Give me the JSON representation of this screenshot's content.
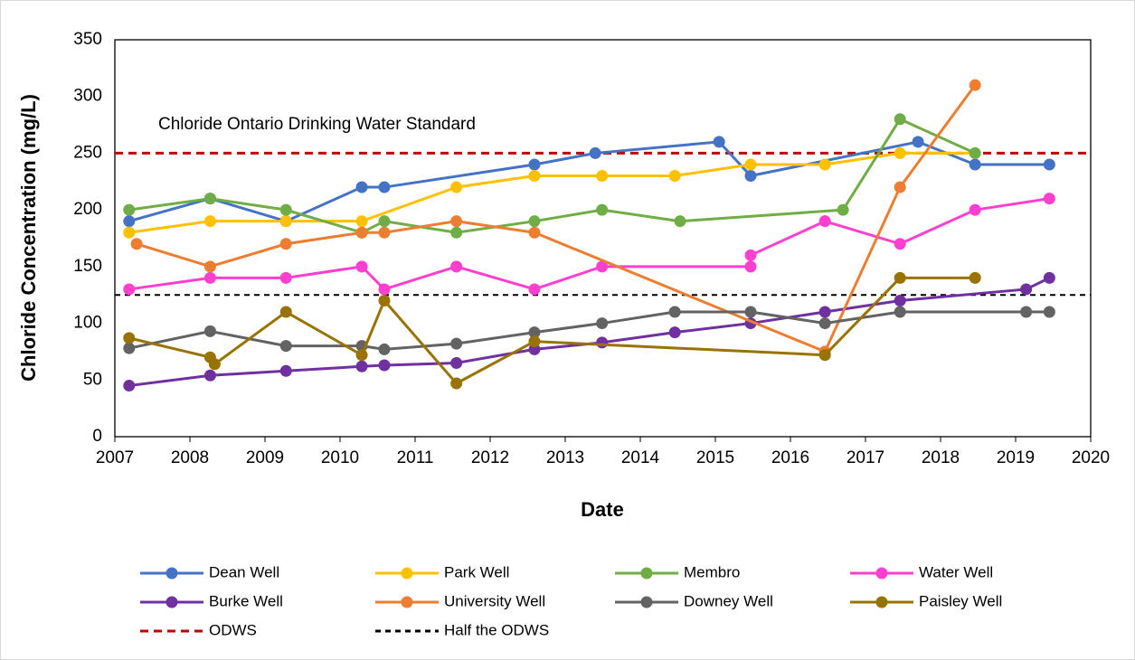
{
  "chart_data": {
    "type": "line",
    "x_label": "Date",
    "y_label": "Chloride Concentration (mg/L)",
    "annotation": "Chloride Ontario Drinking Water Standard",
    "xlim": [
      2007,
      2020
    ],
    "xticks": [
      2007,
      2008,
      2009,
      2010,
      2011,
      2012,
      2013,
      2014,
      2015,
      2016,
      2017,
      2018,
      2019,
      2020
    ],
    "ylim": [
      0,
      350
    ],
    "yticks": [
      0,
      50,
      100,
      150,
      200,
      250,
      300,
      350
    ],
    "legend": "bottom",
    "series": [
      {
        "name": "Dean Well",
        "color": "#4472c4",
        "x": [
          2007.19,
          2008.27,
          2009.28,
          2010.29,
          2010.59,
          2012.59,
          2013.4,
          2015.05,
          2015.47,
          2017.7,
          2018.46,
          2019.45
        ],
        "values": [
          190,
          210,
          190,
          220,
          220,
          240,
          250,
          260,
          230,
          260,
          240,
          240
        ]
      },
      {
        "name": "Park Well",
        "color": "#ffc000",
        "x": [
          2007.19,
          2008.27,
          2009.28,
          2010.29,
          2011.55,
          2012.59,
          2013.49,
          2014.46,
          2015.47,
          2016.46,
          2017.46,
          2018.46
        ],
        "values": [
          180,
          190,
          190,
          190,
          220,
          230,
          230,
          230,
          240,
          240,
          250,
          250
        ]
      },
      {
        "name": "Membro",
        "color": "#70ad47",
        "x": [
          2007.19,
          2008.27,
          2009.28,
          2010.29,
          2010.59,
          2011.55,
          2012.59,
          2013.49,
          2014.53,
          2016.7,
          2017.46,
          2018.46
        ],
        "values": [
          200,
          210,
          200,
          180,
          190,
          180,
          190,
          200,
          190,
          200,
          280,
          250
        ]
      },
      {
        "name": "Water Well",
        "color": "#ff3fcf",
        "x": [
          2007.19,
          2008.27,
          2009.28,
          2010.29,
          2010.59,
          2011.55,
          2012.59,
          2013.49,
          2015.47,
          2015.47,
          2016.46,
          2017.46,
          2018.46,
          2019.45
        ],
        "values": [
          130,
          140,
          140,
          150,
          130,
          150,
          130,
          150,
          150,
          160,
          190,
          170,
          200,
          210
        ]
      },
      {
        "name": "Burke Well",
        "color": "#7030a0",
        "x": [
          2007.19,
          2008.27,
          2009.28,
          2010.29,
          2010.59,
          2011.55,
          2012.59,
          2013.49,
          2014.46,
          2015.47,
          2016.46,
          2017.46,
          2019.14,
          2019.45
        ],
        "values": [
          45,
          54,
          58,
          62,
          63,
          65,
          77,
          83,
          92,
          100,
          110,
          120,
          130,
          140
        ]
      },
      {
        "name": "University Well",
        "color": "#ed7d31",
        "x": [
          2007.29,
          2008.27,
          2009.28,
          2010.29,
          2010.59,
          2011.55,
          2012.59,
          2016.46,
          2017.46,
          2018.46
        ],
        "values": [
          170,
          150,
          170,
          180,
          180,
          190,
          180,
          75,
          220,
          310
        ]
      },
      {
        "name": "Downey Well",
        "color": "#636363",
        "x": [
          2007.19,
          2008.27,
          2009.28,
          2010.29,
          2010.59,
          2011.55,
          2012.59,
          2013.49,
          2014.46,
          2015.47,
          2016.46,
          2017.46,
          2019.14,
          2019.45
        ],
        "values": [
          78,
          93,
          80,
          80,
          77,
          82,
          92,
          100,
          110,
          110,
          100,
          110,
          110,
          110
        ]
      },
      {
        "name": "Paisley Well",
        "color": "#997300",
        "x": [
          2007.19,
          2008.27,
          2008.33,
          2009.28,
          2010.29,
          2010.59,
          2011.55,
          2012.59,
          2016.46,
          2017.46,
          2018.46
        ],
        "values": [
          87,
          70,
          64,
          110,
          72,
          120,
          47,
          84,
          72,
          140,
          140
        ]
      }
    ],
    "reference_lines": [
      {
        "name": "ODWS",
        "color": "#c00000",
        "value": 250
      },
      {
        "name": "Half the ODWS",
        "color": "#000000",
        "value": 125
      }
    ]
  }
}
